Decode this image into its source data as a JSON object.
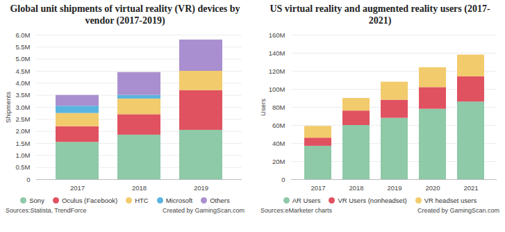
{
  "chart_data": [
    {
      "type": "bar",
      "title": "Global unit shipments of virtual reality (VR) devices by vendor (2017-2019)",
      "stacked": true,
      "grid": true,
      "legend": "bottom",
      "ylabel": "Shipments",
      "categories": [
        "2017",
        "2018",
        "2019"
      ],
      "ylim": [
        0,
        6000000
      ],
      "yticks": [
        0,
        {
          "value": 500000,
          "label": "0.5M"
        },
        {
          "value": 1000000,
          "label": "1.0M"
        },
        {
          "value": 1500000,
          "label": "1.5M"
        },
        {
          "value": 2000000,
          "label": "2.0M"
        },
        {
          "value": 2500000,
          "label": "2.5M"
        },
        {
          "value": 3000000,
          "label": "3.0M"
        },
        {
          "value": 3500000,
          "label": "3.5M"
        },
        {
          "value": 4000000,
          "label": "4.0M"
        },
        {
          "value": 4500000,
          "label": "4.5M"
        },
        {
          "value": 5000000,
          "label": "5.0M"
        },
        {
          "value": 5500000,
          "label": "5.5M"
        },
        {
          "value": 6000000,
          "label": "6.0M"
        }
      ],
      "series": [
        {
          "name": "Sony",
          "color": "#8ec9a8",
          "values": [
            1550000,
            1850000,
            2050000
          ]
        },
        {
          "name": "Oculus (Facebook)",
          "color": "#e05260",
          "values": [
            650000,
            850000,
            1650000
          ]
        },
        {
          "name": "HTC",
          "color": "#f2cb6c",
          "values": [
            550000,
            650000,
            800000
          ]
        },
        {
          "name": "Microsoft",
          "color": "#5ab4e0",
          "values": [
            300000,
            150000,
            0
          ]
        },
        {
          "name": "Others",
          "color": "#a98fcf",
          "values": [
            450000,
            950000,
            1300000
          ]
        }
      ],
      "source": "Sources:Statista, TrendForce",
      "credit": "Created by GamingScan.com"
    },
    {
      "type": "bar",
      "title": "US virtual reality and augmented reality users (2017-2021)",
      "stacked": true,
      "grid": true,
      "legend": "bottom",
      "ylabel": "Users",
      "categories": [
        "2017",
        "2018",
        "2019",
        "2020",
        "2021"
      ],
      "ylim": [
        0,
        160000000
      ],
      "yticks": [
        0,
        {
          "value": 20000000,
          "label": "20M"
        },
        {
          "value": 40000000,
          "label": "40M"
        },
        {
          "value": 60000000,
          "label": "60M"
        },
        {
          "value": 80000000,
          "label": "80M"
        },
        {
          "value": 100000000,
          "label": "100M"
        },
        {
          "value": 120000000,
          "label": "120M"
        },
        {
          "value": 140000000,
          "label": "140M"
        },
        {
          "value": 160000000,
          "label": "160M"
        }
      ],
      "series": [
        {
          "name": "AR Users",
          "color": "#8ec9a8",
          "values": [
            37000000,
            60000000,
            68000000,
            78000000,
            86000000
          ]
        },
        {
          "name": "VR Users (nonheadset)",
          "color": "#e05260",
          "values": [
            9000000,
            16000000,
            20000000,
            24000000,
            28000000
          ]
        },
        {
          "name": "VR headset users",
          "color": "#f2cb6c",
          "values": [
            13000000,
            14000000,
            20000000,
            22000000,
            24000000
          ]
        }
      ],
      "source": "Sources:eMarketer charts",
      "credit": "Created by GamingScan.com"
    }
  ]
}
